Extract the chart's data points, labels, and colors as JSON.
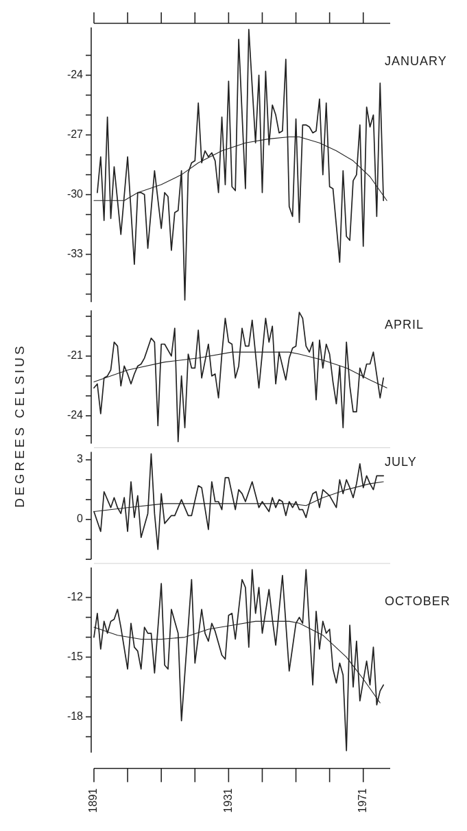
{
  "chart_data": [
    {
      "type": "line",
      "title": "JANUARY",
      "ylabel": "DEGREES CELSIUS",
      "xlim": [
        1891,
        1979
      ],
      "ylim": [
        -35.4,
        -21.6
      ],
      "yticks": [
        {
          "value": -23,
          "label": null
        },
        -24,
        {
          "value": -25,
          "label": null
        },
        {
          "value": -26,
          "label": null
        },
        -27,
        {
          "value": -28,
          "label": null
        },
        {
          "value": -29,
          "label": null
        },
        -30,
        {
          "value": -31,
          "label": null
        },
        {
          "value": -32,
          "label": null
        },
        -33,
        {
          "value": -34,
          "label": null
        },
        {
          "value": -35,
          "label": null
        }
      ],
      "tick_labels": "y",
      "series": [
        {
          "color": "#222222",
          "x": [
            1892,
            1893,
            1894,
            1895,
            1896,
            1897,
            1899,
            1901,
            1903,
            1904,
            1905,
            1906,
            1907,
            1909,
            1911,
            1912,
            1913,
            1914,
            1915,
            1916,
            1917,
            1918,
            1919,
            1920,
            1921,
            1922,
            1923,
            1924,
            1925,
            1926,
            1927,
            1928,
            1929,
            1930,
            1931,
            1932,
            1933,
            1934,
            1936,
            1937,
            1939,
            1940,
            1941,
            1942,
            1943,
            1944,
            1945,
            1946,
            1947,
            1948,
            1949,
            1950,
            1951,
            1952,
            1953,
            1954,
            1955,
            1956,
            1957,
            1958,
            1959,
            1960,
            1961,
            1962,
            1964,
            1965,
            1966,
            1967,
            1968,
            1969,
            1970,
            1971,
            1972,
            1973,
            1974,
            1975,
            1976,
            1977
          ],
          "values": [
            -29.9,
            -28.1,
            -31.3,
            -26.1,
            -31.2,
            -28.6,
            -32.0,
            -28.1,
            -33.5,
            -29.9,
            -29.9,
            -30.0,
            -32.7,
            -28.8,
            -31.7,
            -29.9,
            -30.1,
            -32.8,
            -30.9,
            -30.8,
            -28.8,
            -35.3,
            -28.9,
            -28.4,
            -28.3,
            -25.4,
            -28.4,
            -27.8,
            -28.1,
            -27.9,
            -28.3,
            -29.9,
            -26.1,
            -29.5,
            -24.3,
            -29.6,
            -29.8,
            -22.2,
            -29.7,
            -21.7,
            -27.4,
            -24.0,
            -29.9,
            -23.8,
            -27.5,
            -25.5,
            -26.0,
            -26.9,
            -26.8,
            -23.2,
            -30.6,
            -31.1,
            -26.2,
            -31.4,
            -26.5,
            -26.5,
            -26.6,
            -26.9,
            -26.8,
            -25.2,
            -29.0,
            -25.4,
            -29.6,
            -29.7,
            -33.4,
            -28.8,
            -32.1,
            -32.3,
            -29.3,
            -29.0,
            -26.5,
            -32.6,
            -25.6,
            -26.6,
            -26.0,
            -31.1,
            -24.4,
            -30.3
          ]
        },
        {
          "color": "#222222",
          "x": [
            1891,
            1900,
            1904,
            1911,
            1917,
            1922,
            1929,
            1936,
            1943,
            1949,
            1952,
            1958,
            1963,
            1968,
            1973,
            1978
          ],
          "values": [
            -30.3,
            -30.3,
            -29.9,
            -29.5,
            -29.0,
            -28.4,
            -27.8,
            -27.4,
            -27.2,
            -27.1,
            -27.1,
            -27.4,
            -27.8,
            -28.3,
            -29.1,
            -30.3
          ]
        }
      ]
    },
    {
      "type": "line",
      "title": "APRIL",
      "xlim": [
        1891,
        1979
      ],
      "ylim": [
        -25.4,
        -18.7
      ],
      "yticks": [
        {
          "value": -19,
          "label": null
        },
        {
          "value": -20,
          "label": null
        },
        -21,
        {
          "value": -22,
          "label": null
        },
        {
          "value": -23,
          "label": null
        },
        -24,
        {
          "value": -25,
          "label": null
        }
      ],
      "tick_labels": "y",
      "series": [
        {
          "color": "#222222",
          "x": [
            1891,
            1892,
            1893,
            1894,
            1895,
            1896,
            1897,
            1898,
            1899,
            1900,
            1901,
            1902,
            1903,
            1904,
            1905,
            1906,
            1908,
            1909,
            1910,
            1911,
            1912,
            1914,
            1915,
            1916,
            1917,
            1918,
            1919,
            1920,
            1921,
            1922,
            1923,
            1925,
            1926,
            1927,
            1928,
            1929,
            1930,
            1931,
            1932,
            1933,
            1934,
            1935,
            1936,
            1937,
            1938,
            1940,
            1942,
            1943,
            1944,
            1945,
            1946,
            1948,
            1949,
            1950,
            1951,
            1952,
            1953,
            1954,
            1955,
            1956,
            1957,
            1958,
            1959,
            1960,
            1961,
            1962,
            1963,
            1964,
            1965,
            1966,
            1967,
            1968,
            1969,
            1970,
            1971,
            1972,
            1973,
            1974,
            1976,
            1977
          ],
          "values": [
            -22.6,
            -22.4,
            -23.9,
            -22.1,
            -22.0,
            -21.7,
            -20.3,
            -20.5,
            -22.5,
            -21.5,
            -21.9,
            -22.4,
            -21.9,
            -21.5,
            -21.4,
            -21.1,
            -20.1,
            -20.3,
            -24.5,
            -20.4,
            -20.4,
            -21.0,
            -19.6,
            -25.3,
            -22.0,
            -24.6,
            -20.9,
            -21.6,
            -21.6,
            -19.7,
            -22.1,
            -20.4,
            -22.0,
            -21.9,
            -23.1,
            -20.9,
            -19.1,
            -20.3,
            -20.4,
            -22.1,
            -21.5,
            -19.6,
            -20.5,
            -20.5,
            -19.2,
            -22.6,
            -19.1,
            -20.3,
            -19.5,
            -22.4,
            -20.8,
            -22.2,
            -21.1,
            -20.6,
            -20.5,
            -18.8,
            -19.1,
            -20.5,
            -20.8,
            -20.3,
            -23.2,
            -20.2,
            -21.6,
            -20.4,
            -20.9,
            -22.3,
            -23.4,
            -21.5,
            -24.6,
            -20.3,
            -22.5,
            -23.8,
            -23.8,
            -21.6,
            -22.1,
            -21.4,
            -21.4,
            -20.8,
            -23.1,
            -22.1
          ]
        },
        {
          "color": "#222222",
          "x": [
            1891,
            1901,
            1912,
            1922,
            1932,
            1942,
            1949,
            1952,
            1959,
            1966,
            1973,
            1978
          ],
          "values": [
            -22.3,
            -21.7,
            -21.3,
            -21.1,
            -20.8,
            -20.8,
            -20.8,
            -20.9,
            -21.2,
            -21.6,
            -22.2,
            -22.6
          ]
        }
      ]
    },
    {
      "type": "line",
      "title": "JULY",
      "xlim": [
        1891,
        1979
      ],
      "ylim": [
        -2,
        3.4
      ],
      "yticks": [
        3,
        {
          "value": 2,
          "label": null
        },
        {
          "value": 1,
          "label": null
        },
        0,
        {
          "value": -1,
          "label": null
        },
        {
          "value": -2,
          "label": null
        }
      ],
      "tick_labels": "y",
      "series": [
        {
          "color": "#222222",
          "x": [
            1891,
            1893,
            1894,
            1896,
            1897,
            1898,
            1899,
            1900,
            1901,
            1902,
            1903,
            1904,
            1905,
            1907,
            1908,
            1909,
            1910,
            1911,
            1912,
            1914,
            1915,
            1917,
            1919,
            1920,
            1922,
            1923,
            1925,
            1926,
            1927,
            1928,
            1929,
            1930,
            1931,
            1933,
            1934,
            1935,
            1936,
            1938,
            1940,
            1941,
            1943,
            1944,
            1945,
            1946,
            1947,
            1948,
            1949,
            1950,
            1951,
            1952,
            1953,
            1954,
            1955,
            1956,
            1957,
            1958,
            1959,
            1961,
            1963,
            1964,
            1965,
            1966,
            1967,
            1968,
            1969,
            1970,
            1971,
            1972,
            1973,
            1974,
            1975,
            1977
          ],
          "values": [
            0.4,
            -0.6,
            1.4,
            0.6,
            1.1,
            0.6,
            0.3,
            1.1,
            -0.6,
            1.9,
            0.1,
            1.2,
            -0.9,
            0.3,
            3.3,
            0.3,
            -1.5,
            1.3,
            -0.2,
            0.2,
            0.2,
            1.0,
            0.2,
            0.2,
            1.7,
            1.6,
            -0.5,
            1.9,
            0.9,
            0.9,
            0.5,
            2.1,
            2.1,
            0.5,
            1.5,
            1.3,
            0.9,
            1.9,
            0.6,
            0.9,
            0.4,
            1.1,
            0.6,
            1.0,
            0.9,
            0.2,
            0.9,
            0.6,
            0.9,
            0.5,
            0.5,
            0.1,
            0.8,
            1.3,
            1.4,
            0.6,
            1.5,
            1.2,
            0.6,
            2.0,
            1.3,
            2.0,
            1.6,
            1.1,
            1.8,
            2.8,
            1.6,
            2.2,
            1.8,
            1.5,
            2.2,
            2.2
          ]
        },
        {
          "color": "#222222",
          "x": [
            1891,
            1901,
            1912,
            1922,
            1932,
            1941,
            1949,
            1954,
            1959,
            1966,
            1973,
            1977
          ],
          "values": [
            0.4,
            0.6,
            0.8,
            0.8,
            0.8,
            0.8,
            0.8,
            0.7,
            1.1,
            1.5,
            1.8,
            1.9
          ]
        }
      ]
    },
    {
      "type": "line",
      "title": "OCTOBER",
      "xlim": [
        1891,
        1979
      ],
      "xticks": [
        1891,
        1931,
        1971
      ],
      "ylim": [
        -19.8,
        -10.5
      ],
      "yticks": [
        -12,
        {
          "value": -13,
          "label": null
        },
        {
          "value": -14,
          "label": null
        },
        -15,
        {
          "value": -16,
          "label": null
        },
        {
          "value": -17,
          "label": null
        },
        -18,
        {
          "value": -19,
          "label": null
        }
      ],
      "series": [
        {
          "color": "#222222",
          "x": [
            1891,
            1892,
            1893,
            1894,
            1895,
            1896,
            1897,
            1898,
            1899,
            1901,
            1902,
            1903,
            1904,
            1905,
            1906,
            1907,
            1908,
            1909,
            1911,
            1912,
            1913,
            1914,
            1915,
            1916,
            1917,
            1920,
            1921,
            1923,
            1924,
            1925,
            1926,
            1927,
            1929,
            1930,
            1931,
            1932,
            1933,
            1935,
            1936,
            1937,
            1938,
            1939,
            1940,
            1941,
            1943,
            1944,
            1945,
            1947,
            1949,
            1951,
            1952,
            1953,
            1954,
            1956,
            1957,
            1958,
            1959,
            1960,
            1961,
            1962,
            1963,
            1964,
            1965,
            1966,
            1967,
            1968,
            1969,
            1970,
            1972,
            1973,
            1974,
            1975,
            1976,
            1977
          ],
          "values": [
            -14.0,
            -12.8,
            -14.6,
            -13.2,
            -13.8,
            -13.2,
            -13.1,
            -12.6,
            -13.5,
            -15.6,
            -13.3,
            -14.5,
            -14.7,
            -15.6,
            -13.5,
            -13.8,
            -13.8,
            -15.8,
            -11.3,
            -15.4,
            -15.6,
            -12.6,
            -13.2,
            -13.8,
            -18.2,
            -11.1,
            -15.3,
            -12.6,
            -13.8,
            -14.2,
            -13.3,
            -13.7,
            -14.9,
            -15.1,
            -12.9,
            -12.8,
            -14.1,
            -11.1,
            -11.5,
            -14.5,
            -10.6,
            -12.8,
            -11.5,
            -13.8,
            -11.6,
            -13.1,
            -14.4,
            -10.9,
            -15.7,
            -13.3,
            -13.0,
            -13.3,
            -10.6,
            -16.4,
            -12.7,
            -14.6,
            -13.2,
            -13.8,
            -13.6,
            -15.6,
            -16.3,
            -15.3,
            -15.9,
            -19.7,
            -13.4,
            -16.5,
            -14.2,
            -17.2,
            -15.2,
            -16.4,
            -14.5,
            -17.4,
            -16.7,
            -16.4
          ]
        },
        {
          "color": "#222222",
          "x": [
            1891,
            1898,
            1905,
            1911,
            1918,
            1925,
            1932,
            1939,
            1945,
            1949,
            1952,
            1959,
            1966,
            1971,
            1976
          ],
          "values": [
            -13.5,
            -13.9,
            -14.1,
            -14.1,
            -14.0,
            -13.6,
            -13.4,
            -13.2,
            -13.2,
            -13.2,
            -13.3,
            -13.9,
            -15.0,
            -16.1,
            -17.3
          ]
        }
      ]
    }
  ]
}
